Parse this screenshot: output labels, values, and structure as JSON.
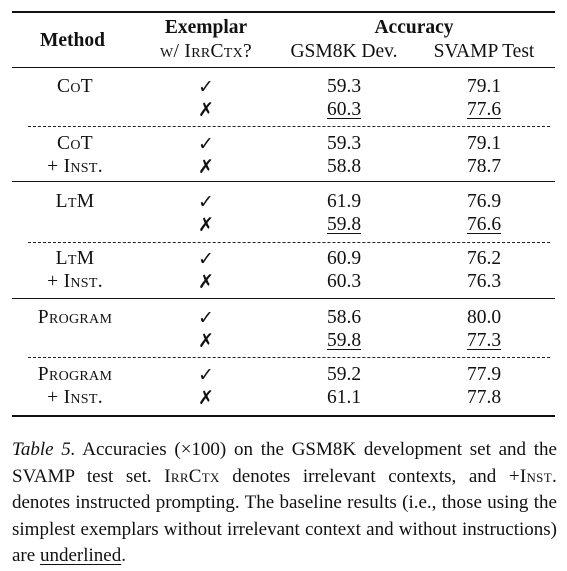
{
  "table": {
    "header": {
      "method": "Method",
      "exemplar": "Exemplar",
      "exemplar_sub": "w/ IrrCtx?",
      "accuracy": "Accuracy",
      "col_gsm": "GSM8K Dev.",
      "col_svamp": "SVAMP Test"
    },
    "groups": [
      {
        "method": "CoT",
        "inst": "",
        "rows": [
          {
            "mark": "✓",
            "gsm": "59.3",
            "svamp": "79.1",
            "underline": false
          },
          {
            "mark": "✗",
            "gsm": "60.3",
            "svamp": "77.6",
            "underline": true
          }
        ]
      },
      {
        "method": "CoT",
        "inst": "+ Inst.",
        "rows": [
          {
            "mark": "✓",
            "gsm": "59.3",
            "svamp": "79.1",
            "underline": false
          },
          {
            "mark": "✗",
            "gsm": "58.8",
            "svamp": "78.7",
            "underline": false
          }
        ]
      },
      {
        "method": "LtM",
        "inst": "",
        "rows": [
          {
            "mark": "✓",
            "gsm": "61.9",
            "svamp": "76.9",
            "underline": false
          },
          {
            "mark": "✗",
            "gsm": "59.8",
            "svamp": "76.6",
            "underline": true
          }
        ]
      },
      {
        "method": "LtM",
        "inst": "+ Inst.",
        "rows": [
          {
            "mark": "✓",
            "gsm": "60.9",
            "svamp": "76.2",
            "underline": false
          },
          {
            "mark": "✗",
            "gsm": "60.3",
            "svamp": "76.3",
            "underline": false
          }
        ]
      },
      {
        "method": "Program",
        "inst": "",
        "rows": [
          {
            "mark": "✓",
            "gsm": "58.6",
            "svamp": "80.0",
            "underline": false
          },
          {
            "mark": "✗",
            "gsm": "59.8",
            "svamp": "77.3",
            "underline": true
          }
        ]
      },
      {
        "method": "Program",
        "inst": "+ Inst.",
        "rows": [
          {
            "mark": "✓",
            "gsm": "59.2",
            "svamp": "77.9",
            "underline": false
          },
          {
            "mark": "✗",
            "gsm": "61.1",
            "svamp": "77.8",
            "underline": false
          }
        ]
      }
    ]
  },
  "caption": {
    "label": "Table 5.",
    "part1": " Accuracies (×100) on the GSM8K development set and the SVAMP test set. ",
    "irrctx": "IrrCtx",
    "part2": " denotes irrelevant contexts, and ",
    "inst": "+Inst.",
    "part3": " denotes instructed prompting. The baseline results (i.e., those using the simplest exemplars without irrelevant context and without instructions) are ",
    "underlined": "underlined",
    "part4": "."
  }
}
